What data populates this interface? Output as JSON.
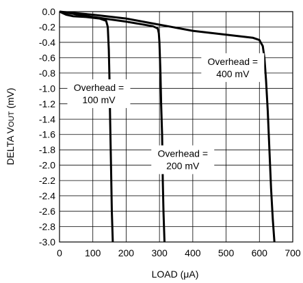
{
  "chart_data": {
    "type": "line",
    "title": "",
    "xlabel": "LOAD (μA)",
    "ylabel": {
      "main": "DELTA V",
      "sub": "OUT",
      "unit": " (mV)"
    },
    "xlim": [
      0,
      700
    ],
    "ylim": [
      -3.0,
      0.0
    ],
    "x_ticks": [
      0,
      100,
      200,
      300,
      400,
      500,
      600,
      700
    ],
    "x_tick_labels": [
      "0",
      "100",
      "200",
      "300",
      "400",
      "500",
      "600",
      "700"
    ],
    "y_ticks": [
      0.0,
      -0.2,
      -0.4,
      -0.6,
      -0.8,
      -1.0,
      -1.2,
      -1.4,
      -1.6,
      -1.8,
      -2.0,
      -2.2,
      -2.4,
      -2.6,
      -2.8,
      -3.0
    ],
    "y_tick_labels": [
      "0.0",
      "-0.2",
      "-0.4",
      "-0.6",
      "-0.8",
      "-1.0",
      "-1.2",
      "-1.4",
      "-1.6",
      "-1.8",
      "-2.0",
      "-2.2",
      "-2.4",
      "-2.6",
      "-2.8",
      "-3.0"
    ],
    "grid": true,
    "series": [
      {
        "x": [
          0,
          20,
          40,
          80,
          120,
          140,
          145,
          148,
          150,
          152,
          155,
          157,
          160
        ],
        "y": [
          0.0,
          -0.04,
          -0.06,
          -0.07,
          -0.09,
          -0.12,
          -0.2,
          -0.5,
          -0.9,
          -1.4,
          -2.1,
          -2.6,
          -3.0
        ],
        "color": "#000000"
      },
      {
        "x": [
          0,
          100,
          200,
          280,
          295,
          298,
          300,
          303,
          305,
          308,
          310,
          312,
          315
        ],
        "y": [
          0.0,
          -0.07,
          -0.13,
          -0.19,
          -0.22,
          -0.28,
          -0.4,
          -0.8,
          -1.2,
          -1.6,
          -2.2,
          -2.6,
          -3.0
        ],
        "color": "#000000"
      },
      {
        "x": [
          0,
          100,
          200,
          300,
          400,
          500,
          580,
          600,
          610,
          615,
          620,
          625,
          630,
          635,
          640,
          645
        ],
        "y": [
          0.0,
          -0.04,
          -0.09,
          -0.17,
          -0.25,
          -0.3,
          -0.34,
          -0.37,
          -0.45,
          -0.6,
          -0.9,
          -1.3,
          -1.8,
          -2.3,
          -2.7,
          -3.0
        ],
        "color": "#000000"
      }
    ],
    "annotations": [
      {
        "lines": [
          "Overhead =",
          "100 mV"
        ],
        "x": 118,
        "y": -1.06
      },
      {
        "lines": [
          "Overhead =",
          "200 mV"
        ],
        "x": 370,
        "y": -1.92
      },
      {
        "lines": [
          "Overhead =",
          "400 mV"
        ],
        "x": 520,
        "y": -0.72
      }
    ]
  }
}
